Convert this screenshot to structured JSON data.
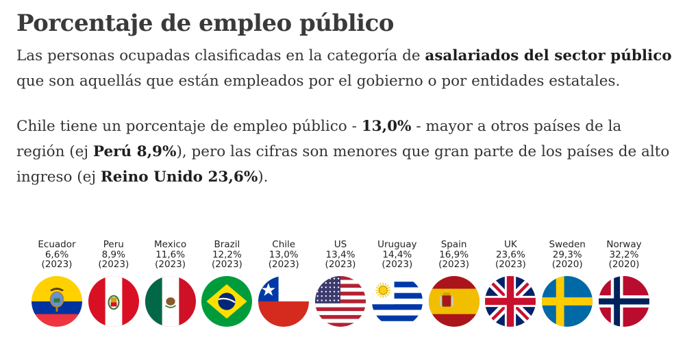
{
  "title": "Porcentaje de empleo público",
  "intro": {
    "t1": "Las personas ocupadas clasificadas en la categoría de ",
    "b1": "asalariados del sector público",
    "t2": " que son aquellás que están empleados por el gobierno o por entidades estatales."
  },
  "body": {
    "t1": "Chile tiene un porcentaje de empleo público - ",
    "b1": "13,0%",
    "t2": " - mayor a otros países de la región (ej ",
    "b2": "Perú 8,9%",
    "t3": "), pero las cifras son menores que gran parte de los países de alto ingreso (ej ",
    "b3": "Reino Unido 23,6%",
    "t4": ")."
  },
  "chart_data": {
    "type": "table",
    "title": "",
    "value_unit": "%",
    "items": [
      {
        "country": "Ecuador",
        "value": 6.6,
        "value_label": "6,6%",
        "year": "(2023)",
        "flag": "ecuador-flag"
      },
      {
        "country": "Peru",
        "value": 8.9,
        "value_label": "8,9%",
        "year": "(2023)",
        "flag": "peru-flag"
      },
      {
        "country": "Mexico",
        "value": 11.6,
        "value_label": "11,6%",
        "year": "(2023)",
        "flag": "mexico-flag"
      },
      {
        "country": "Brazil",
        "value": 12.2,
        "value_label": "12,2%",
        "year": "(2023)",
        "flag": "brazil-flag"
      },
      {
        "country": "Chile",
        "value": 13.0,
        "value_label": "13,0%",
        "year": "(2023)",
        "flag": "chile-flag"
      },
      {
        "country": "US",
        "value": 13.4,
        "value_label": "13,4%",
        "year": "(2023)",
        "flag": "us-flag"
      },
      {
        "country": "Uruguay",
        "value": 14.4,
        "value_label": "14,4%",
        "year": "(2023)",
        "flag": "uruguay-flag"
      },
      {
        "country": "Spain",
        "value": 16.9,
        "value_label": "16,9%",
        "year": "(2023)",
        "flag": "spain-flag"
      },
      {
        "country": "UK",
        "value": 23.6,
        "value_label": "23,6%",
        "year": "(2023)",
        "flag": "uk-flag"
      },
      {
        "country": "Sweden",
        "value": 29.3,
        "value_label": "29,3%",
        "year": "(2020)",
        "flag": "sweden-flag"
      },
      {
        "country": "Norway",
        "value": 32.2,
        "value_label": "32,2%",
        "year": "(2020)",
        "flag": "norway-flag"
      }
    ]
  }
}
